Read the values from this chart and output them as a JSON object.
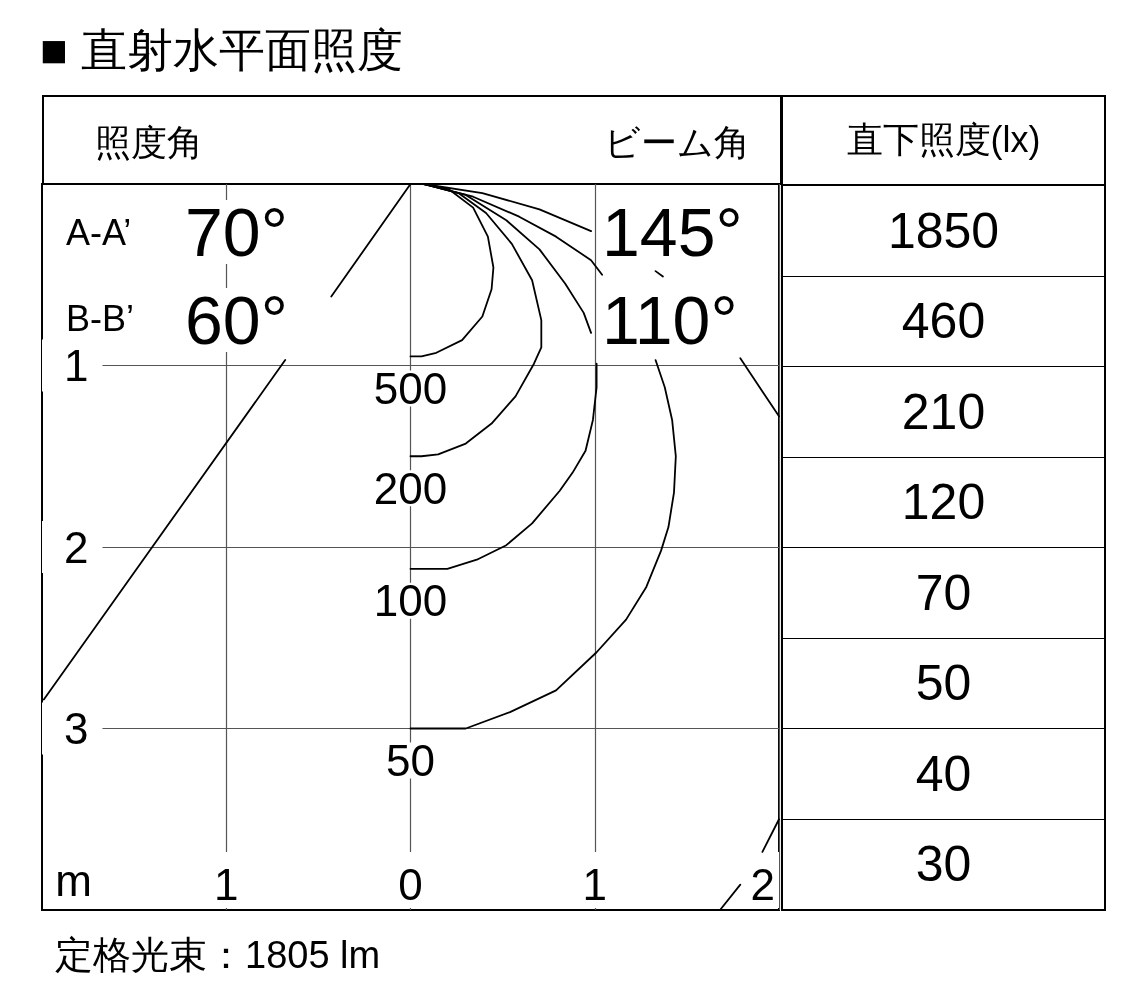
{
  "chart_data": [
    {
      "type": "line",
      "title": "■ 直射水平面照度",
      "xlabel": "m",
      "annotations": [
        "照度角",
        "ビーム角",
        "A-A’",
        "70°",
        "B-B’",
        "60°",
        "145°",
        "110°",
        "定格光束：1805 lm"
      ],
      "xlim": [
        -2,
        2
      ],
      "ylim": [
        4,
        0
      ],
      "xticks": [
        {
          "value": -1,
          "label": "1"
        },
        0,
        1,
        2
      ],
      "yticks": [
        1,
        2,
        3
      ],
      "grid": true,
      "series": [
        {
          "name": "500",
          "color": "#000000",
          "x": [
            0.07,
            0.21,
            0.34,
            0.42,
            0.45,
            0.44,
            0.39,
            0.28,
            0.14,
            0.06,
            0
          ],
          "values": [
            0,
            0.03,
            0.13,
            0.29,
            0.46,
            0.58,
            0.73,
            0.86,
            0.93,
            0.95,
            0.95
          ]
        },
        {
          "name": "200",
          "color": "#000000",
          "x": [
            0.07,
            0.26,
            0.41,
            0.55,
            0.66,
            0.71,
            0.71,
            0.67,
            0.57,
            0.44,
            0.3,
            0.15,
            0.06,
            0
          ],
          "values": [
            0,
            0.05,
            0.16,
            0.33,
            0.53,
            0.75,
            0.9,
            0.99,
            1.17,
            1.32,
            1.43,
            1.49,
            1.5,
            1.5
          ]
        },
        {
          "name": "100",
          "color": "#000000",
          "x": [
            0.07,
            0.3,
            0.52,
            0.7,
            0.84,
            0.94,
            0.98,
            1.0,
            1.01,
            1.01,
            0.99,
            0.95,
            0.88,
            0.81,
            0.66,
            0.52,
            0.36,
            0.2,
            0
          ],
          "values": [
            0,
            0.06,
            0.2,
            0.36,
            0.55,
            0.71,
            0.82,
            null,
            0.99,
            1.12,
            1.3,
            1.47,
            1.59,
            1.69,
            1.87,
            1.99,
            2.07,
            2.12,
            2.12
          ]
        },
        {
          "name": "50",
          "color": "#000000",
          "x": [
            0.07,
            0.34,
            0.59,
            0.79,
            0.98,
            1.04,
            1.2,
            1.33,
            1.38,
            1.42,
            1.44,
            1.43,
            1.4,
            1.36,
            1.28,
            1.17,
            1.01,
            0.79,
            0.54,
            0.3,
            0
          ],
          "values": [
            0,
            0.07,
            0.18,
            0.29,
            0.42,
            0.5,
            null,
            0.97,
            1.12,
            1.3,
            1.5,
            1.7,
            1.89,
            2.02,
            2.22,
            2.4,
            2.58,
            2.79,
            2.91,
            3.0,
            3.0
          ]
        },
        {
          "color": "#000000",
          "x": [
            0.07,
            0.39,
            0.7,
            0.98,
            1.15,
            1.33,
            1.37,
            1.6,
            1.79,
            2.0
          ],
          "values": [
            0,
            0.05,
            0.14,
            0.26,
            null,
            0.48,
            0.51,
            null,
            0.96,
            1.28
          ]
        },
        {
          "color": "#000000",
          "x": [
            2.0,
            1.91,
            1.85,
            1.79,
            1.68
          ],
          "values": [
            3.5,
            3.68,
            null,
            3.86,
            4.0
          ]
        },
        {
          "color": "#000000",
          "x": [
            0,
            -0.43,
            -0.55,
            -0.68,
            -1.99
          ],
          "values": [
            0,
            0.62,
            null,
            0.97,
            2.84
          ]
        }
      ]
    },
    {
      "type": "other",
      "title": "直下照度(lx)",
      "values": [
        1850,
        460,
        210,
        120,
        70,
        50,
        40,
        30
      ],
      "data_labels": true
    }
  ]
}
